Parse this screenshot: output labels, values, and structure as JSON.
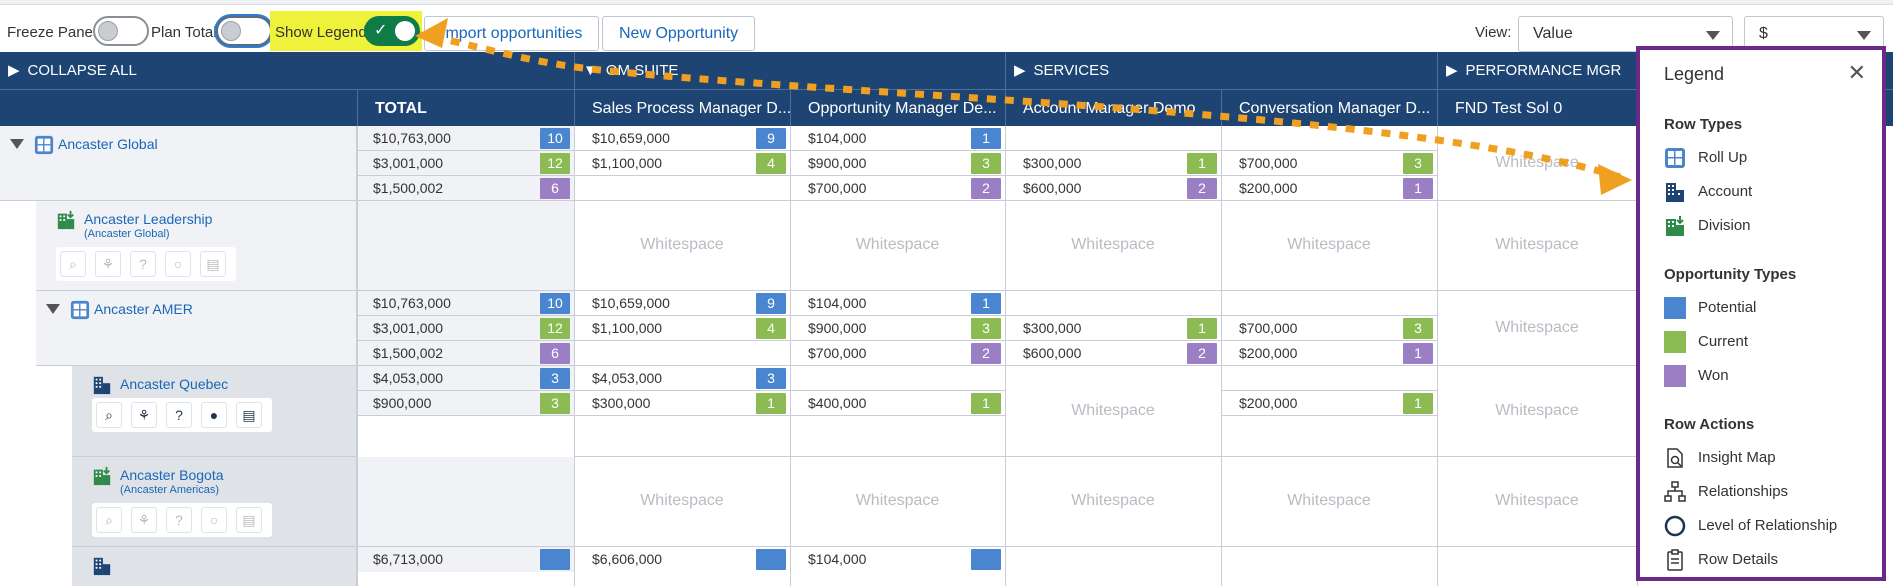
{
  "toolbar": {
    "freeze_panes_label": "Freeze Panes",
    "plan_total_label": "Plan Total",
    "show_legend_label": "Show Legend",
    "import_button": "Import opportunities",
    "new_button": "New Opportunity",
    "view_label": "View:",
    "view_value": "Value",
    "currency_value": "$"
  },
  "header": {
    "collapse_all": "COLLAPSE ALL",
    "groups": [
      "OM SUITE",
      "SERVICES",
      "PERFORMANCE MGR"
    ],
    "columns": [
      "TOTAL",
      "Sales Process Manager D...",
      "Opportunity Manager De...",
      "Account Manager Demo",
      "Conversation Manager D...",
      "FND Test Sol 0"
    ]
  },
  "rows": [
    {
      "name": "Ancaster Global",
      "subtitle": "",
      "lines": [
        [
          "$10,763,000",
          "10",
          "$10,659,000",
          "9",
          "$104,000",
          "1",
          "",
          "",
          "",
          ""
        ],
        [
          "$3,001,000",
          "12",
          "$1,100,000",
          "4",
          "$900,000",
          "3",
          "$300,000",
          "1",
          "$700,000",
          "3"
        ],
        [
          "$1,500,002",
          "6",
          "",
          "",
          "$700,000",
          "2",
          "$600,000",
          "2",
          "$200,000",
          "1"
        ]
      ],
      "last_col": "Whitespace"
    },
    {
      "name": "Ancaster Leadership",
      "subtitle": "(Ancaster Global)",
      "whitespace": "Whitespace"
    },
    {
      "name": "Ancaster AMER",
      "subtitle": "",
      "lines": [
        [
          "$10,763,000",
          "10",
          "$10,659,000",
          "9",
          "$104,000",
          "1",
          "",
          "",
          "",
          ""
        ],
        [
          "$3,001,000",
          "12",
          "$1,100,000",
          "4",
          "$900,000",
          "3",
          "$300,000",
          "1",
          "$700,000",
          "3"
        ],
        [
          "$1,500,002",
          "6",
          "",
          "",
          "$700,000",
          "2",
          "$600,000",
          "2",
          "$200,000",
          "1"
        ]
      ],
      "last_col": "Whitespace"
    },
    {
      "name": "Ancaster Quebec",
      "subtitle": "",
      "lines": [
        [
          "$4,053,000",
          "3",
          "$4,053,000",
          "3",
          "",
          "",
          "",
          "",
          "",
          ""
        ],
        [
          "$900,000",
          "3",
          "$300,000",
          "1",
          "$400,000",
          "1",
          "",
          "",
          "$200,000",
          "1"
        ]
      ],
      "services_ws": "Whitespace",
      "last_col": "Whitespace"
    },
    {
      "name": "Ancaster Bogota",
      "subtitle": "(Ancaster Americas)",
      "whitespace": "Whitespace"
    },
    {
      "name": "",
      "partial": [
        "$6,713,000",
        "$6,606,000",
        "$104,000"
      ]
    }
  ],
  "legend": {
    "title": "Legend",
    "row_types_title": "Row Types",
    "row_types": [
      "Roll Up",
      "Account",
      "Division"
    ],
    "opp_types_title": "Opportunity Types",
    "opp_types": [
      "Potential",
      "Current",
      "Won"
    ],
    "row_actions_title": "Row Actions",
    "row_actions": [
      "Insight Map",
      "Relationships",
      "Level of Relationship",
      "Row Details"
    ]
  },
  "colors": {
    "header": "#1d4472",
    "potential": "#4a86cf",
    "current": "#8bbb52",
    "won": "#9b7fc5",
    "legend_border": "#6b2a8a",
    "arrow": "#f0a020",
    "highlight": "#eef23a"
  }
}
